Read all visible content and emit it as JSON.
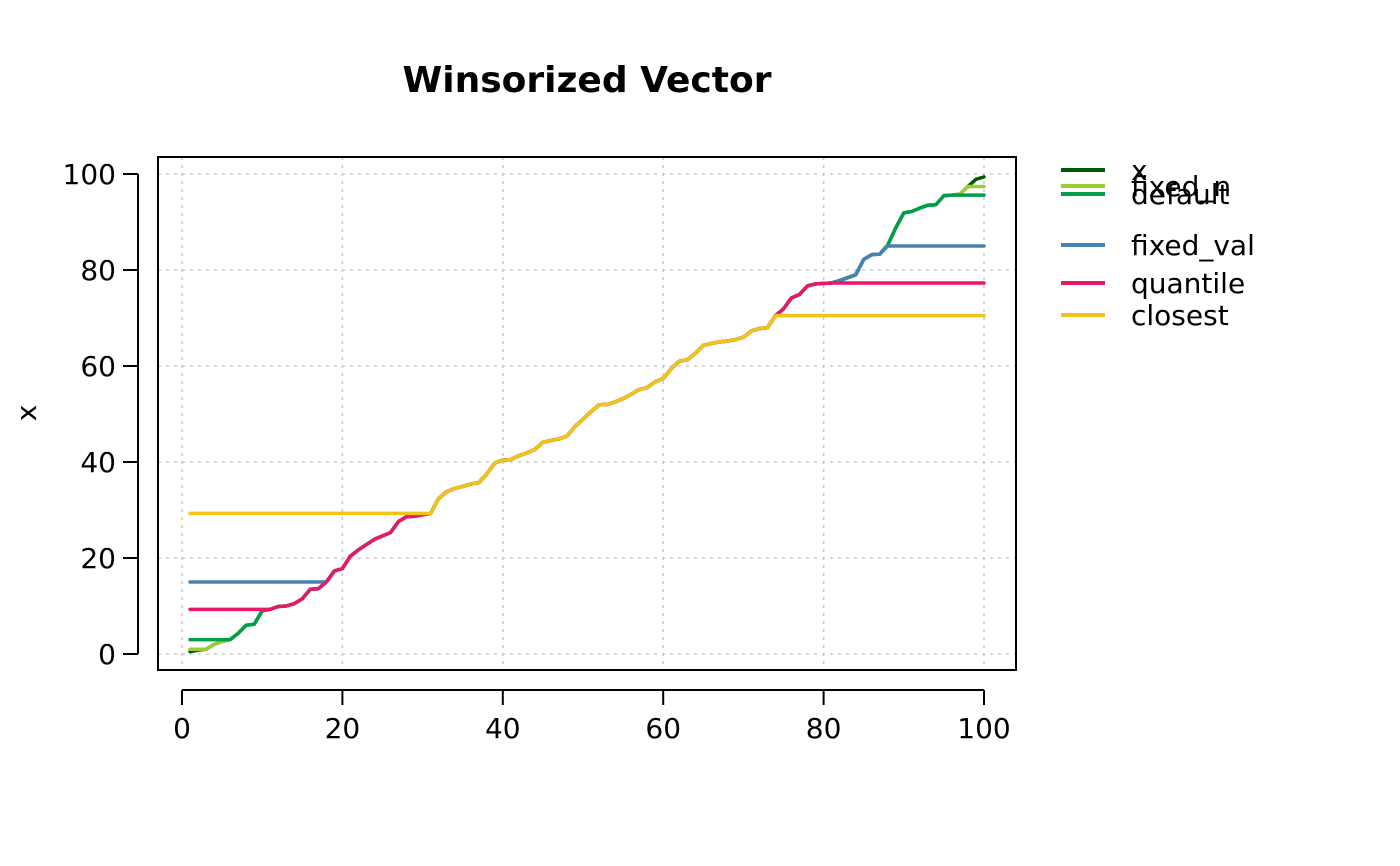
{
  "chart_data": {
    "type": "line",
    "title": "Winsorized Vector",
    "xlabel": "",
    "ylabel": "x",
    "xlim": [
      0,
      100
    ],
    "ylim": [
      0,
      100
    ],
    "x_ticks": [
      "0",
      "20",
      "40",
      "60",
      "80",
      "100"
    ],
    "y_ticks": [
      "0",
      "20",
      "40",
      "60",
      "80",
      "100"
    ],
    "grid": true,
    "legend_position": "outside-right",
    "x": [
      1,
      2,
      3,
      4,
      5,
      6,
      7,
      8,
      9,
      10,
      11,
      12,
      13,
      14,
      15,
      16,
      17,
      18,
      19,
      20,
      21,
      22,
      23,
      24,
      25,
      26,
      27,
      28,
      29,
      30,
      31,
      32,
      33,
      34,
      35,
      36,
      37,
      38,
      39,
      40,
      41,
      42,
      43,
      44,
      45,
      46,
      47,
      48,
      49,
      50,
      51,
      52,
      53,
      54,
      55,
      56,
      57,
      58,
      59,
      60,
      61,
      62,
      63,
      64,
      65,
      66,
      67,
      68,
      69,
      70,
      71,
      72,
      73,
      74,
      75,
      76,
      77,
      78,
      79,
      80,
      81,
      82,
      83,
      84,
      85,
      86,
      87,
      88,
      89,
      90,
      91,
      92,
      93,
      94,
      95,
      96,
      97,
      98,
      99,
      100
    ],
    "series": [
      {
        "name": "x",
        "color": "#005A00",
        "values": [
          0.5,
          0.8,
          1.0,
          2.0,
          2.6,
          3.0,
          4.3,
          6.0,
          6.2,
          9.0,
          9.3,
          9.9,
          10.0,
          10.5,
          11.5,
          13.5,
          13.6,
          15.0,
          17.3,
          17.8,
          20.4,
          21.7,
          22.8,
          23.9,
          24.6,
          25.3,
          27.6,
          28.6,
          28.7,
          29.0,
          29.3,
          32.4,
          33.8,
          34.5,
          34.9,
          35.4,
          35.7,
          37.5,
          39.8,
          40.4,
          40.5,
          41.3,
          41.9,
          42.6,
          44.1,
          44.5,
          44.8,
          45.4,
          47.4,
          48.9,
          50.5,
          51.9,
          52.0,
          52.5,
          53.2,
          54.1,
          55.1,
          55.5,
          56.7,
          57.4,
          59.4,
          61.0,
          61.3,
          62.6,
          64.3,
          64.7,
          65.0,
          65.2,
          65.5,
          66.0,
          67.3,
          67.8,
          68.0,
          70.5,
          71.9,
          74.2,
          74.9,
          76.7,
          77.1,
          77.2,
          77.3,
          77.8,
          78.4,
          79.0,
          82.2,
          83.2,
          83.3,
          85.2,
          88.8,
          91.9,
          92.2,
          92.9,
          93.5,
          93.6,
          95.5,
          95.6,
          95.8,
          97.4,
          98.9,
          99.4
        ]
      },
      {
        "name": "fixed_n",
        "color": "#9ACD32",
        "values": [
          1.0,
          1.0,
          1.0,
          2.0,
          2.6,
          3.0,
          4.3,
          6.0,
          6.2,
          9.0,
          9.3,
          9.9,
          10.0,
          10.5,
          11.5,
          13.5,
          13.6,
          15.0,
          17.3,
          17.8,
          20.4,
          21.7,
          22.8,
          23.9,
          24.6,
          25.3,
          27.6,
          28.6,
          28.7,
          29.0,
          29.3,
          32.4,
          33.8,
          34.5,
          34.9,
          35.4,
          35.7,
          37.5,
          39.8,
          40.4,
          40.5,
          41.3,
          41.9,
          42.6,
          44.1,
          44.5,
          44.8,
          45.4,
          47.4,
          48.9,
          50.5,
          51.9,
          52.0,
          52.5,
          53.2,
          54.1,
          55.1,
          55.5,
          56.7,
          57.4,
          59.4,
          61.0,
          61.3,
          62.6,
          64.3,
          64.7,
          65.0,
          65.2,
          65.5,
          66.0,
          67.3,
          67.8,
          68.0,
          70.5,
          71.9,
          74.2,
          74.9,
          76.7,
          77.1,
          77.2,
          77.3,
          77.8,
          78.4,
          79.0,
          82.2,
          83.2,
          83.3,
          85.2,
          88.8,
          91.9,
          92.2,
          92.9,
          93.5,
          93.6,
          95.5,
          95.6,
          95.8,
          97.4,
          97.4,
          97.4
        ]
      },
      {
        "name": "default",
        "color": "#009E4A",
        "values": [
          3.0,
          3.0,
          3.0,
          3.0,
          3.0,
          3.0,
          4.3,
          6.0,
          6.2,
          9.0,
          9.3,
          9.9,
          10.0,
          10.5,
          11.5,
          13.5,
          13.6,
          15.0,
          17.3,
          17.8,
          20.4,
          21.7,
          22.8,
          23.9,
          24.6,
          25.3,
          27.6,
          28.6,
          28.7,
          29.0,
          29.3,
          32.4,
          33.8,
          34.5,
          34.9,
          35.4,
          35.7,
          37.5,
          39.8,
          40.4,
          40.5,
          41.3,
          41.9,
          42.6,
          44.1,
          44.5,
          44.8,
          45.4,
          47.4,
          48.9,
          50.5,
          51.9,
          52.0,
          52.5,
          53.2,
          54.1,
          55.1,
          55.5,
          56.7,
          57.4,
          59.4,
          61.0,
          61.3,
          62.6,
          64.3,
          64.7,
          65.0,
          65.2,
          65.5,
          66.0,
          67.3,
          67.8,
          68.0,
          70.5,
          71.9,
          74.2,
          74.9,
          76.7,
          77.1,
          77.2,
          77.3,
          77.8,
          78.4,
          79.0,
          82.2,
          83.2,
          83.3,
          85.2,
          88.8,
          91.9,
          92.2,
          92.9,
          93.5,
          93.6,
          95.5,
          95.6,
          95.6,
          95.6,
          95.6,
          95.6
        ]
      },
      {
        "name": "fixed_val",
        "color": "#4682B4",
        "values": [
          15.0,
          15.0,
          15.0,
          15.0,
          15.0,
          15.0,
          15.0,
          15.0,
          15.0,
          15.0,
          15.0,
          15.0,
          15.0,
          15.0,
          15.0,
          15.0,
          15.0,
          15.0,
          17.3,
          17.8,
          20.4,
          21.7,
          22.8,
          23.9,
          24.6,
          25.3,
          27.6,
          28.6,
          28.7,
          29.0,
          29.3,
          32.4,
          33.8,
          34.5,
          34.9,
          35.4,
          35.7,
          37.5,
          39.8,
          40.4,
          40.5,
          41.3,
          41.9,
          42.6,
          44.1,
          44.5,
          44.8,
          45.4,
          47.4,
          48.9,
          50.5,
          51.9,
          52.0,
          52.5,
          53.2,
          54.1,
          55.1,
          55.5,
          56.7,
          57.4,
          59.4,
          61.0,
          61.3,
          62.6,
          64.3,
          64.7,
          65.0,
          65.2,
          65.5,
          66.0,
          67.3,
          67.8,
          68.0,
          70.5,
          71.9,
          74.2,
          74.9,
          76.7,
          77.1,
          77.2,
          77.3,
          77.8,
          78.4,
          79.0,
          82.2,
          83.2,
          83.3,
          85.0,
          85.0,
          85.0,
          85.0,
          85.0,
          85.0,
          85.0,
          85.0,
          85.0,
          85.0,
          85.0,
          85.0,
          85.0
        ]
      },
      {
        "name": "quantile",
        "color": "#E8176A",
        "values": [
          9.3,
          9.3,
          9.3,
          9.3,
          9.3,
          9.3,
          9.3,
          9.3,
          9.3,
          9.3,
          9.3,
          9.9,
          10.0,
          10.5,
          11.5,
          13.5,
          13.6,
          15.0,
          17.3,
          17.8,
          20.4,
          21.7,
          22.8,
          23.9,
          24.6,
          25.3,
          27.6,
          28.6,
          28.7,
          29.0,
          29.3,
          32.4,
          33.8,
          34.5,
          34.9,
          35.4,
          35.7,
          37.5,
          39.8,
          40.4,
          40.5,
          41.3,
          41.9,
          42.6,
          44.1,
          44.5,
          44.8,
          45.4,
          47.4,
          48.9,
          50.5,
          51.9,
          52.0,
          52.5,
          53.2,
          54.1,
          55.1,
          55.5,
          56.7,
          57.4,
          59.4,
          61.0,
          61.3,
          62.6,
          64.3,
          64.7,
          65.0,
          65.2,
          65.5,
          66.0,
          67.3,
          67.8,
          68.0,
          70.5,
          71.9,
          74.2,
          74.9,
          76.7,
          77.1,
          77.2,
          77.3,
          77.3,
          77.3,
          77.3,
          77.3,
          77.3,
          77.3,
          77.3,
          77.3,
          77.3,
          77.3,
          77.3,
          77.3,
          77.3,
          77.3,
          77.3,
          77.3,
          77.3,
          77.3,
          77.3
        ]
      },
      {
        "name": "closest",
        "color": "#F2C318",
        "values": [
          29.3,
          29.3,
          29.3,
          29.3,
          29.3,
          29.3,
          29.3,
          29.3,
          29.3,
          29.3,
          29.3,
          29.3,
          29.3,
          29.3,
          29.3,
          29.3,
          29.3,
          29.3,
          29.3,
          29.3,
          29.3,
          29.3,
          29.3,
          29.3,
          29.3,
          29.3,
          29.3,
          29.3,
          29.3,
          29.3,
          29.3,
          32.4,
          33.8,
          34.5,
          34.9,
          35.4,
          35.7,
          37.5,
          39.8,
          40.4,
          40.5,
          41.3,
          41.9,
          42.6,
          44.1,
          44.5,
          44.8,
          45.4,
          47.4,
          48.9,
          50.5,
          51.9,
          52.0,
          52.5,
          53.2,
          54.1,
          55.1,
          55.5,
          56.7,
          57.4,
          59.4,
          61.0,
          61.3,
          62.6,
          64.3,
          64.7,
          65.0,
          65.2,
          65.5,
          66.0,
          67.3,
          67.8,
          68.0,
          70.5,
          70.5,
          70.5,
          70.5,
          70.5,
          70.5,
          70.5,
          70.5,
          70.5,
          70.5,
          70.5,
          70.5,
          70.5,
          70.5,
          70.5,
          70.5,
          70.5,
          70.5,
          70.5,
          70.5,
          70.5,
          70.5,
          70.5,
          70.5,
          70.5,
          70.5,
          70.5
        ]
      }
    ],
    "legend": [
      {
        "label": "x",
        "color": "#005A00"
      },
      {
        "label": "fixed_n",
        "color": "#9ACD32"
      },
      {
        "label": "default",
        "color": "#009E4A"
      },
      {
        "label": "fixed_val",
        "color": "#4682B4"
      },
      {
        "label": "quantile",
        "color": "#E8176A"
      },
      {
        "label": "closest",
        "color": "#F2C318"
      }
    ]
  }
}
